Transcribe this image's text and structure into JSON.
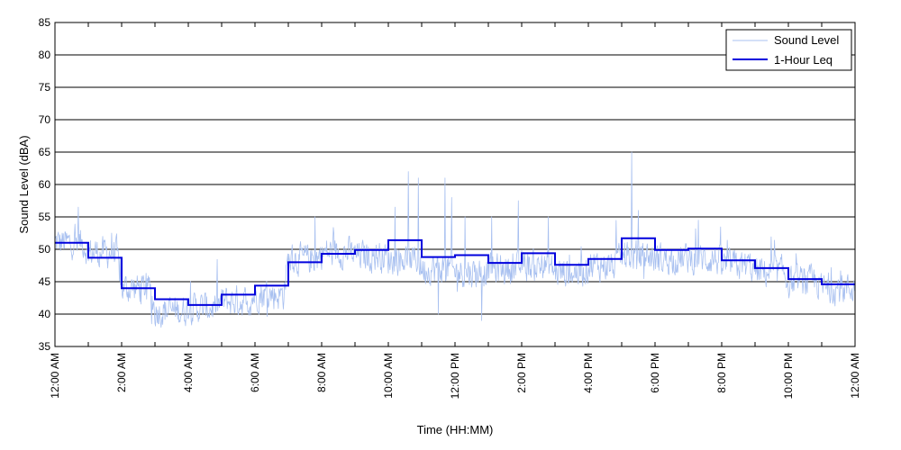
{
  "chart_data": {
    "type": "line",
    "xlabel": "Time (HH:MM)",
    "ylabel": "Sound Level (dBA)",
    "xlim_hours": [
      0,
      24
    ],
    "ylim": [
      35,
      85
    ],
    "y_ticks": [
      35,
      40,
      45,
      50,
      55,
      60,
      65,
      70,
      75,
      80,
      85
    ],
    "x_ticks": [
      {
        "hour": 0,
        "label": "12:00 AM"
      },
      {
        "hour": 2,
        "label": "2:00 AM"
      },
      {
        "hour": 4,
        "label": "4:00 AM"
      },
      {
        "hour": 6,
        "label": "6:00 AM"
      },
      {
        "hour": 8,
        "label": "8:00 AM"
      },
      {
        "hour": 10,
        "label": "10:00 AM"
      },
      {
        "hour": 12,
        "label": "12:00 PM"
      },
      {
        "hour": 14,
        "label": "2:00 PM"
      },
      {
        "hour": 16,
        "label": "4:00 PM"
      },
      {
        "hour": 18,
        "label": "6:00 PM"
      },
      {
        "hour": 20,
        "label": "8:00 PM"
      },
      {
        "hour": 22,
        "label": "10:00 PM"
      },
      {
        "hour": 24,
        "label": "12:00 AM"
      }
    ],
    "grid": "horizontal",
    "legend_position": "top-right",
    "colors": {
      "sound_level": "#a8c0f0",
      "leq": "#0000dd",
      "grid": "#000000"
    },
    "series": [
      {
        "name": "Sound Level",
        "style": "thin-noisy-line",
        "hourly_mean": [
          51,
          49.5,
          44,
          40.5,
          41,
          42,
          43,
          48.5,
          49.5,
          49,
          48.5,
          47,
          46.5,
          47,
          47.5,
          46.5,
          47.5,
          49,
          48.5,
          48.5,
          47.5,
          46.5,
          45,
          44
        ],
        "peaks": [
          {
            "hour": 0.7,
            "value": 56.5
          },
          {
            "hour": 1.7,
            "value": 52.5
          },
          {
            "hour": 7.8,
            "value": 55
          },
          {
            "hour": 10.2,
            "value": 56.5
          },
          {
            "hour": 10.6,
            "value": 62
          },
          {
            "hour": 10.9,
            "value": 61
          },
          {
            "hour": 11.7,
            "value": 61
          },
          {
            "hour": 11.9,
            "value": 58
          },
          {
            "hour": 12.3,
            "value": 55
          },
          {
            "hour": 13.1,
            "value": 55
          },
          {
            "hour": 13.9,
            "value": 57.5
          },
          {
            "hour": 14.8,
            "value": 55
          },
          {
            "hour": 17.3,
            "value": 65
          },
          {
            "hour": 17.5,
            "value": 56
          },
          {
            "hour": 19.3,
            "value": 54.5
          },
          {
            "hour": 2.9,
            "value": 38.5
          },
          {
            "hour": 11.5,
            "value": 40
          },
          {
            "hour": 12.8,
            "value": 39
          }
        ]
      },
      {
        "name": "1-Hour Leq",
        "style": "step",
        "values": [
          51,
          48.7,
          44,
          42.3,
          41.4,
          43,
          44.4,
          48,
          49.3,
          49.9,
          51.4,
          48.8,
          49.1,
          47.9,
          49.4,
          47.6,
          48.5,
          51.7,
          49.9,
          50.1,
          48.3,
          47.1,
          45.4,
          44.6
        ]
      }
    ]
  }
}
